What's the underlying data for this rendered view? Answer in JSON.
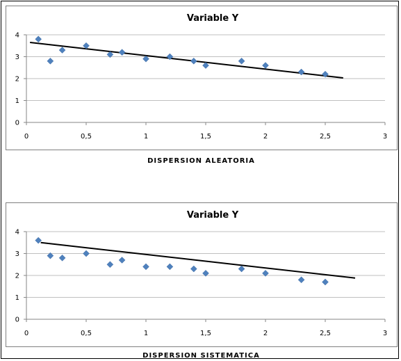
{
  "chart_data": [
    {
      "type": "scatter",
      "title": "Variable Y",
      "caption": "DISPERSION ALEATORIA",
      "xlim": [
        0,
        3
      ],
      "ylim": [
        0,
        4
      ],
      "x_ticks": [
        "0",
        "0,5",
        "1",
        "1,5",
        "2",
        "2,5",
        "3"
      ],
      "y_ticks": [
        "0",
        "1",
        "2",
        "3",
        "4"
      ],
      "grid": true,
      "legend": "none",
      "marker_color": "#4f81bd",
      "points": [
        {
          "x": 0.1,
          "y": 3.8
        },
        {
          "x": 0.2,
          "y": 2.8
        },
        {
          "x": 0.3,
          "y": 3.3
        },
        {
          "x": 0.5,
          "y": 3.5
        },
        {
          "x": 0.7,
          "y": 3.1
        },
        {
          "x": 0.8,
          "y": 3.2
        },
        {
          "x": 1.0,
          "y": 2.9
        },
        {
          "x": 1.2,
          "y": 3.0
        },
        {
          "x": 1.4,
          "y": 2.8
        },
        {
          "x": 1.5,
          "y": 2.6
        },
        {
          "x": 1.8,
          "y": 2.8
        },
        {
          "x": 2.0,
          "y": 2.6
        },
        {
          "x": 2.3,
          "y": 2.3
        },
        {
          "x": 2.5,
          "y": 2.2
        }
      ],
      "trendline": {
        "x1": 0.03,
        "y1": 3.65,
        "x2": 2.65,
        "y2": 2.03
      }
    },
    {
      "type": "scatter",
      "title": "Variable Y",
      "caption": "DISPERSION SISTEMATICA",
      "xlim": [
        0,
        3
      ],
      "ylim": [
        0,
        4
      ],
      "x_ticks": [
        "0",
        "0,5",
        "1",
        "1,5",
        "2",
        "2,5",
        "3"
      ],
      "y_ticks": [
        "0",
        "1",
        "2",
        "3",
        "4"
      ],
      "grid": true,
      "legend": "none",
      "marker_color": "#4f81bd",
      "points": [
        {
          "x": 0.1,
          "y": 3.6
        },
        {
          "x": 0.2,
          "y": 2.9
        },
        {
          "x": 0.3,
          "y": 2.8
        },
        {
          "x": 0.5,
          "y": 3.0
        },
        {
          "x": 0.7,
          "y": 2.5
        },
        {
          "x": 0.8,
          "y": 2.7
        },
        {
          "x": 1.0,
          "y": 2.4
        },
        {
          "x": 1.2,
          "y": 2.4
        },
        {
          "x": 1.4,
          "y": 2.3
        },
        {
          "x": 1.5,
          "y": 2.1
        },
        {
          "x": 1.8,
          "y": 2.3
        },
        {
          "x": 2.0,
          "y": 2.1
        },
        {
          "x": 2.3,
          "y": 1.8
        },
        {
          "x": 2.5,
          "y": 1.7
        }
      ],
      "trendline": {
        "x1": 0.12,
        "y1": 3.5,
        "x2": 2.75,
        "y2": 1.88
      }
    }
  ]
}
